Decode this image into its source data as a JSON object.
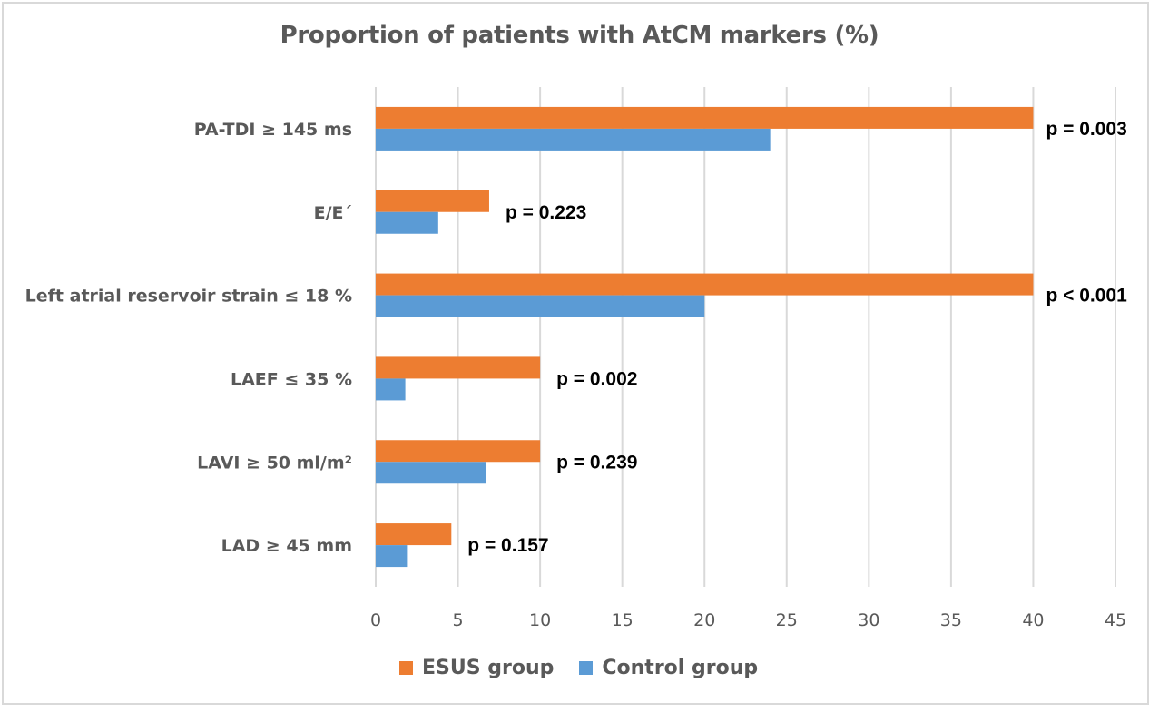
{
  "chart_data": {
    "type": "bar",
    "orientation": "horizontal",
    "title": "Proportion of patients with AtCM markers (%)",
    "xlabel": "",
    "ylabel": "",
    "xlim": [
      0,
      45
    ],
    "xticks": [
      0,
      5,
      10,
      15,
      20,
      25,
      30,
      35,
      40,
      45
    ],
    "grid": true,
    "legend_position": "bottom",
    "categories": [
      "PA-TDI ≥ 145 ms",
      "E/E´",
      "Left atrial reservoir strain ≤ 18 %",
      "LAEF ≤ 35 %",
      "LAVI ≥ 50 ml/m²",
      "LAD ≥ 45 mm"
    ],
    "series": [
      {
        "name": "ESUS group",
        "color": "#ed7d31",
        "values": [
          40,
          6.9,
          40,
          10,
          10,
          4.6
        ]
      },
      {
        "name": "Control group",
        "color": "#5b9bd5",
        "values": [
          24,
          3.8,
          20,
          1.8,
          6.7,
          1.9
        ]
      }
    ],
    "annotations": [
      "p = 0.003",
      "p = 0.223",
      "p < 0.001",
      "p = 0.002",
      "p = 0.239",
      "p = 0.157"
    ]
  },
  "legend": {
    "items": [
      {
        "label": "ESUS group",
        "color": "#ed7d31"
      },
      {
        "label": "Control group",
        "color": "#5b9bd5"
      }
    ]
  }
}
